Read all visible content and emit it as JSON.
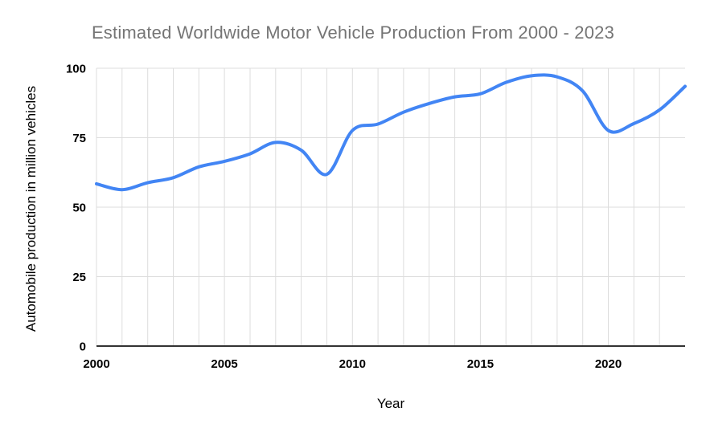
{
  "title": "Estimated Worldwide Motor Vehicle Production From 2000 - 2023",
  "chart_data": {
    "type": "line",
    "title": "Estimated Worldwide Motor Vehicle Production From 2000 - 2023",
    "xlabel": "Year",
    "ylabel": "Automobile production in million vehicles",
    "x": [
      2000,
      2001,
      2002,
      2003,
      2004,
      2005,
      2006,
      2007,
      2008,
      2009,
      2010,
      2011,
      2012,
      2013,
      2014,
      2015,
      2016,
      2017,
      2018,
      2019,
      2020,
      2021,
      2022,
      2023
    ],
    "values": [
      58.4,
      56.3,
      58.8,
      60.6,
      64.5,
      66.5,
      69.2,
      73.3,
      70.5,
      61.8,
      77.6,
      79.9,
      84.2,
      87.3,
      89.7,
      90.8,
      94.9,
      97.3,
      96.9,
      91.8,
      77.6,
      80.1,
      85.0,
      93.5
    ],
    "xticks": [
      2000,
      2005,
      2010,
      2015,
      2020
    ],
    "yticks": [
      0,
      25,
      50,
      75,
      100
    ],
    "ylim": [
      0,
      100
    ],
    "xlim": [
      2000,
      2023
    ],
    "grid": "vertical lines every year, horizontal lines every 25",
    "legend": "none",
    "smooth": true,
    "line_color": "#4285f4",
    "grid_color": "#dddddd",
    "axis_color": "#333333",
    "title_color": "#757575",
    "tick_label_color": "#000000"
  }
}
